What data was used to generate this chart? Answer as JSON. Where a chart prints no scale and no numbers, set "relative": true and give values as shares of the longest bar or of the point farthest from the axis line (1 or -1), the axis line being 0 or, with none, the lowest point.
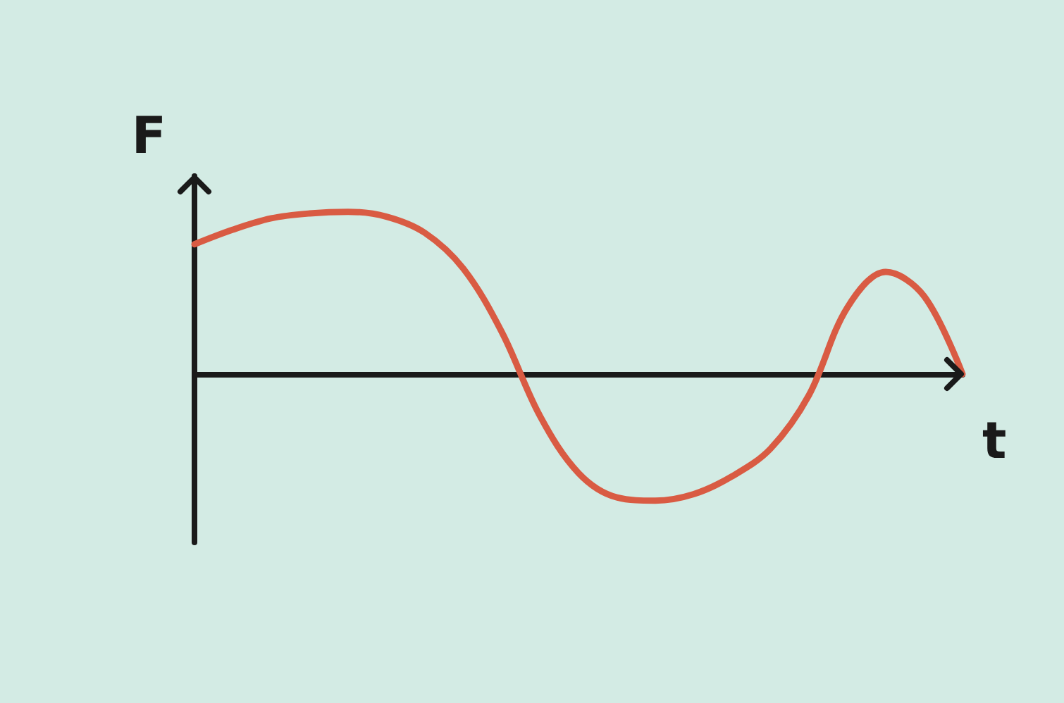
{
  "chart_data": {
    "type": "line",
    "xlabel": "t",
    "ylabel": "F",
    "relative": true,
    "marker": "none",
    "line_style": "solid",
    "grid": false,
    "categories": [
      null,
      null,
      null,
      null,
      null,
      null,
      null,
      null,
      null,
      null,
      null,
      null,
      null,
      null,
      null,
      null,
      null,
      null,
      null,
      null,
      null
    ],
    "series": [
      {
        "color": "#d95b43",
        "values": [
          0.8,
          0.89,
          0.96,
          0.99,
          1.0,
          0.97,
          0.87,
          0.65,
          0.26,
          -0.26,
          -0.61,
          -0.76,
          -0.78,
          -0.74,
          -0.63,
          -0.46,
          -0.13,
          0.41,
          0.63,
          0.48,
          0
        ]
      }
    ]
  }
}
